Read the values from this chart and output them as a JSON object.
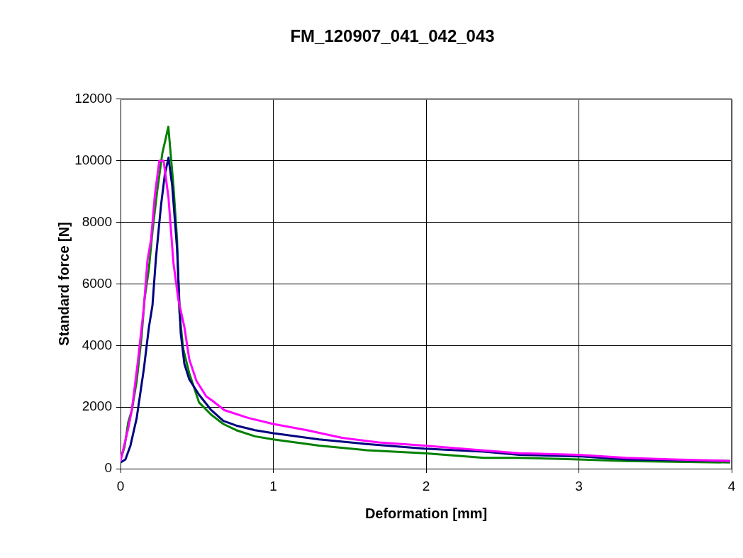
{
  "chart_data": {
    "type": "line",
    "title": "FM_120907_041_042_043",
    "xlabel": "Deformation [mm]",
    "ylabel": "Standard force [N]",
    "xlim": [
      0,
      4
    ],
    "xticks": [
      0,
      1,
      2,
      3,
      4
    ],
    "ylim": [
      0,
      12000
    ],
    "yticks": [
      0,
      2000,
      4000,
      6000,
      8000,
      10000,
      12000
    ],
    "grid": true,
    "series": [
      {
        "color": "#ff00ff",
        "x": [
          0,
          0.05,
          0.074,
          0.114,
          0.153,
          0.176,
          0.2,
          0.225,
          0.254,
          0.282,
          0.314,
          0.346,
          0.378,
          0.418,
          0.45,
          0.497,
          0.561,
          0.603,
          0.68,
          0.835,
          1.0,
          1.22,
          1.45,
          1.69,
          1.99,
          2.23,
          2.61,
          3.0,
          3.31,
          3.62,
          3.99
        ],
        "values": [
          250,
          1300,
          1900,
          3500,
          5250,
          6750,
          7450,
          8900,
          10000,
          10000,
          8800,
          6700,
          5500,
          4600,
          3550,
          2850,
          2350,
          2200,
          1900,
          1650,
          1450,
          1250,
          1000,
          850,
          750,
          650,
          500,
          450,
          350,
          300,
          250
        ]
      },
      {
        "color": "#000080",
        "x": [
          0,
          0.032,
          0.065,
          0.106,
          0.153,
          0.186,
          0.209,
          0.232,
          0.265,
          0.29,
          0.314,
          0.338,
          0.37,
          0.394,
          0.418,
          0.45,
          0.514,
          0.594,
          0.673,
          0.757,
          0.88,
          1.0,
          1.3,
          1.61,
          1.99,
          2.38,
          2.61,
          3.0,
          3.31,
          3.99
        ],
        "values": [
          200,
          300,
          750,
          1650,
          3250,
          4600,
          5300,
          6850,
          8550,
          9550,
          10100,
          9200,
          7150,
          4400,
          3400,
          2900,
          2400,
          1900,
          1550,
          1400,
          1250,
          1150,
          950,
          800,
          650,
          550,
          450,
          400,
          300,
          250
        ]
      },
      {
        "color": "#008000",
        "x": [
          0,
          0.026,
          0.05,
          0.074,
          0.106,
          0.138,
          0.157,
          0.186,
          0.209,
          0.241,
          0.274,
          0.313,
          0.346,
          0.37,
          0.385,
          0.41,
          0.45,
          0.514,
          0.594,
          0.673,
          0.757,
          0.88,
          1.0,
          1.3,
          1.61,
          1.99,
          2.38,
          2.61,
          3.0,
          3.31,
          3.99
        ],
        "values": [
          300,
          700,
          1500,
          1900,
          2850,
          4300,
          5500,
          6500,
          7700,
          9050,
          10250,
          11100,
          9200,
          7450,
          5100,
          3900,
          3100,
          2150,
          1750,
          1450,
          1250,
          1050,
          950,
          750,
          600,
          500,
          350,
          350,
          300,
          250,
          200
        ]
      }
    ]
  }
}
